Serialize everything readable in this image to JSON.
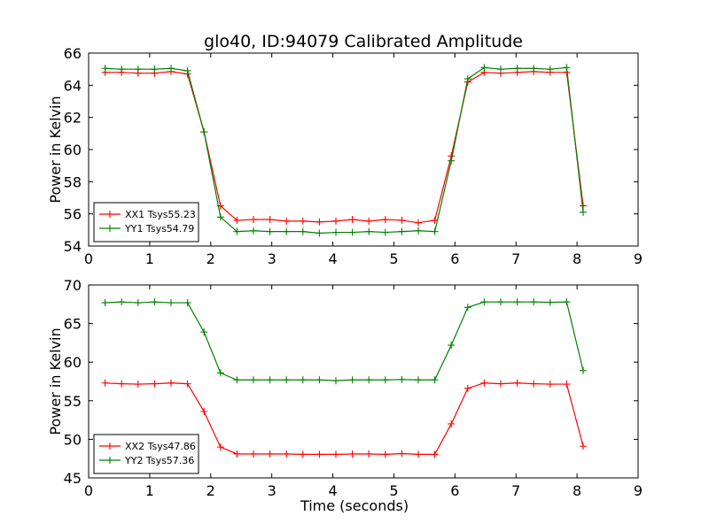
{
  "figure": {
    "title": "glo40, ID:94079 Calibrated Amplitude"
  },
  "chart_data": [
    {
      "type": "line",
      "title": "glo40, ID:94079 Calibrated Amplitude",
      "xlabel": "",
      "ylabel": "Power in Kelvin",
      "xlim": [
        0,
        9
      ],
      "ylim": [
        54,
        66
      ],
      "xticks": [
        0,
        1,
        2,
        3,
        4,
        5,
        6,
        7,
        8,
        9
      ],
      "yticks": [
        54,
        56,
        58,
        60,
        62,
        64,
        66
      ],
      "grid": false,
      "legend_position": "lower-left",
      "marker": "+",
      "x": [
        0.27,
        0.54,
        0.81,
        1.08,
        1.35,
        1.62,
        1.89,
        2.16,
        2.43,
        2.7,
        2.97,
        3.24,
        3.51,
        3.78,
        4.05,
        4.32,
        4.59,
        4.86,
        5.13,
        5.4,
        5.67,
        5.94,
        6.21,
        6.48,
        6.75,
        7.02,
        7.29,
        7.56,
        7.83,
        8.1
      ],
      "series": [
        {
          "name": "XX1 Tsys55.23",
          "color": "#ff0000",
          "values": [
            64.8,
            64.8,
            64.75,
            64.75,
            64.85,
            64.7,
            61.1,
            56.5,
            55.6,
            55.65,
            55.65,
            55.55,
            55.55,
            55.5,
            55.55,
            55.65,
            55.55,
            55.65,
            55.6,
            55.45,
            55.6,
            59.6,
            64.2,
            64.8,
            64.75,
            64.8,
            64.85,
            64.8,
            64.8,
            56.5
          ]
        },
        {
          "name": "YY1 Tsys54.79",
          "color": "#008000",
          "values": [
            65.05,
            65.0,
            65.0,
            65.0,
            65.05,
            64.9,
            61.1,
            55.8,
            54.9,
            54.95,
            54.9,
            54.9,
            54.9,
            54.8,
            54.85,
            54.85,
            54.9,
            54.85,
            54.9,
            54.95,
            54.9,
            59.3,
            64.4,
            65.1,
            65.0,
            65.05,
            65.05,
            65.0,
            65.1,
            56.1
          ]
        }
      ]
    },
    {
      "type": "line",
      "title": "",
      "xlabel": "Time (seconds)",
      "ylabel": "Power in Kelvin",
      "xlim": [
        0,
        9
      ],
      "ylim": [
        45,
        70
      ],
      "xticks": [
        0,
        1,
        2,
        3,
        4,
        5,
        6,
        7,
        8,
        9
      ],
      "yticks": [
        45,
        50,
        55,
        60,
        65,
        70
      ],
      "grid": false,
      "legend_position": "lower-left",
      "marker": "+",
      "x": [
        0.27,
        0.54,
        0.81,
        1.08,
        1.35,
        1.62,
        1.89,
        2.16,
        2.43,
        2.7,
        2.97,
        3.24,
        3.51,
        3.78,
        4.05,
        4.32,
        4.59,
        4.86,
        5.13,
        5.4,
        5.67,
        5.94,
        6.21,
        6.48,
        6.75,
        7.02,
        7.29,
        7.56,
        7.83,
        8.1
      ],
      "series": [
        {
          "name": "XX2 Tsys47.86",
          "color": "#ff0000",
          "values": [
            57.3,
            57.2,
            57.15,
            57.2,
            57.3,
            57.2,
            53.6,
            49.0,
            48.1,
            48.1,
            48.1,
            48.1,
            48.05,
            48.05,
            48.05,
            48.1,
            48.1,
            48.05,
            48.15,
            48.05,
            48.05,
            52.0,
            56.6,
            57.3,
            57.2,
            57.3,
            57.2,
            57.15,
            57.15,
            49.1
          ]
        },
        {
          "name": "YY2 Tsys57.36",
          "color": "#008000",
          "values": [
            67.7,
            67.8,
            67.7,
            67.8,
            67.7,
            67.7,
            63.9,
            58.6,
            57.7,
            57.7,
            57.7,
            57.7,
            57.7,
            57.7,
            57.6,
            57.7,
            57.7,
            57.7,
            57.75,
            57.7,
            57.7,
            62.2,
            67.1,
            67.8,
            67.8,
            67.8,
            67.8,
            67.75,
            67.8,
            58.9
          ]
        }
      ]
    }
  ]
}
